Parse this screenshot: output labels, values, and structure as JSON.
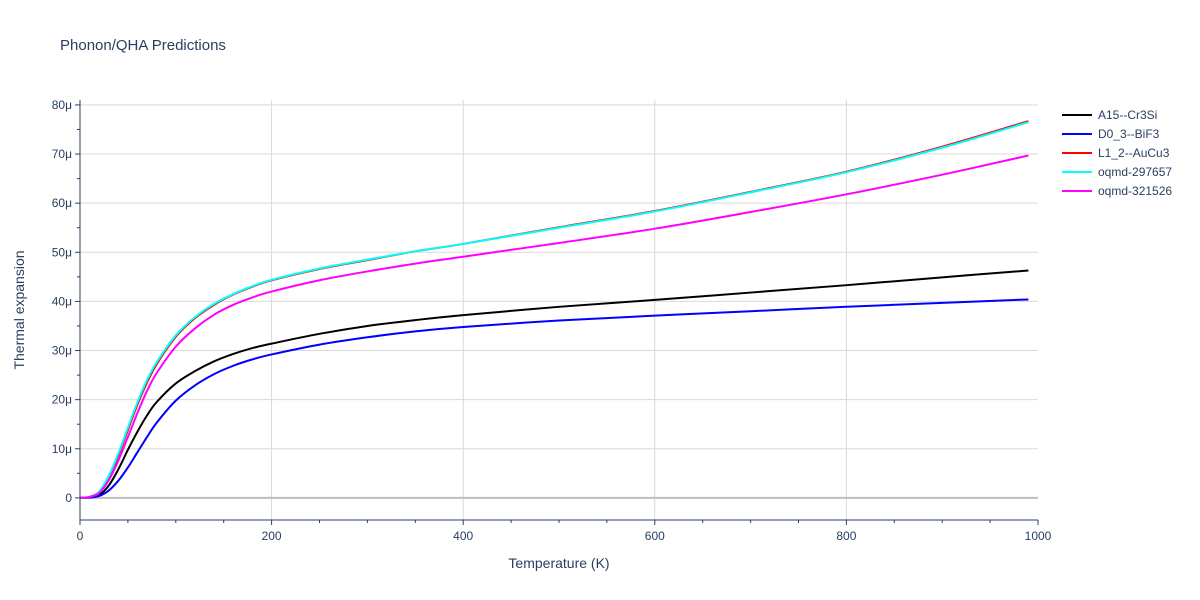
{
  "chart_data": {
    "type": "line",
    "title": "Phonon/QHA Predictions",
    "xlabel": "Temperature (K)",
    "ylabel": "Thermal expansion",
    "xlim": [
      0,
      1000
    ],
    "ylim": [
      -4.5e-06,
      8.1e-05
    ],
    "x_ticks": [
      0,
      200,
      400,
      600,
      800,
      1000
    ],
    "x_tick_labels": [
      "0",
      "200",
      "400",
      "600",
      "800",
      "1000"
    ],
    "y_ticks": [
      0,
      1e-05,
      2e-05,
      3e-05,
      4e-05,
      5e-05,
      6e-05,
      7e-05,
      8e-05
    ],
    "y_tick_labels": [
      "0",
      "10μ",
      "20μ",
      "30μ",
      "40μ",
      "50μ",
      "60μ",
      "70μ",
      "80μ"
    ],
    "grid": true,
    "legend_position": "top-right",
    "x": [
      0,
      10,
      20,
      30,
      40,
      50,
      60,
      70,
      80,
      100,
      120,
      140,
      160,
      180,
      200,
      250,
      300,
      350,
      400,
      500,
      600,
      700,
      800,
      900,
      990
    ],
    "series": [
      {
        "name": "A15--Cr3Si",
        "color": "#000000",
        "values": [
          0,
          1e-07,
          6e-07,
          2.5e-06,
          5.8e-06,
          9.8e-06,
          1.35e-05,
          1.68e-05,
          1.95e-05,
          2.33e-05,
          2.58e-05,
          2.78e-05,
          2.93e-05,
          3.05e-05,
          3.14e-05,
          3.34e-05,
          3.5e-05,
          3.62e-05,
          3.72e-05,
          3.89e-05,
          4.03e-05,
          4.18e-05,
          4.33e-05,
          4.49e-05,
          4.63e-05
        ]
      },
      {
        "name": "D0_3--BiF3",
        "color": "#0000ff",
        "values": [
          0,
          5e-08,
          4e-07,
          1.5e-06,
          3.5e-06,
          6.2e-06,
          9.3e-06,
          1.24e-05,
          1.53e-05,
          1.98e-05,
          2.29e-05,
          2.52e-05,
          2.69e-05,
          2.82e-05,
          2.92e-05,
          3.12e-05,
          3.27e-05,
          3.39e-05,
          3.48e-05,
          3.61e-05,
          3.71e-05,
          3.8e-05,
          3.89e-05,
          3.97e-05,
          4.04e-05
        ]
      },
      {
        "name": "L1_2--AuCu3",
        "color": "#ff0000",
        "values": [
          0,
          2e-07,
          1.2e-06,
          4.2e-06,
          8.6e-06,
          1.38e-05,
          1.9e-05,
          2.35e-05,
          2.72e-05,
          3.28e-05,
          3.66e-05,
          3.93e-05,
          4.14e-05,
          4.3e-05,
          4.43e-05,
          4.66e-05,
          4.84e-05,
          5.02e-05,
          5.17e-05,
          5.51e-05,
          5.84e-05,
          6.23e-05,
          6.64e-05,
          7.15e-05,
          7.67e-05
        ]
      },
      {
        "name": "oqmd-297657",
        "color": "#00ffff",
        "values": [
          0,
          2e-07,
          1.3e-06,
          4.5e-06,
          9e-06,
          1.43e-05,
          1.95e-05,
          2.4e-05,
          2.76e-05,
          3.31e-05,
          3.68e-05,
          3.95e-05,
          4.15e-05,
          4.31e-05,
          4.44e-05,
          4.67e-05,
          4.85e-05,
          5.02e-05,
          5.17e-05,
          5.5e-05,
          5.83e-05,
          6.22e-05,
          6.63e-05,
          7.13e-05,
          7.65e-05
        ]
      },
      {
        "name": "oqmd-321526",
        "color": "#ff00ff",
        "values": [
          0,
          2e-07,
          1e-06,
          3.6e-06,
          7.6e-06,
          1.24e-05,
          1.73e-05,
          2.18e-05,
          2.54e-05,
          3.08e-05,
          3.45e-05,
          3.73e-05,
          3.93e-05,
          4.08e-05,
          4.2e-05,
          4.43e-05,
          4.61e-05,
          4.77e-05,
          4.91e-05,
          5.19e-05,
          5.48e-05,
          5.82e-05,
          6.18e-05,
          6.58e-05,
          6.97e-05
        ]
      }
    ]
  }
}
